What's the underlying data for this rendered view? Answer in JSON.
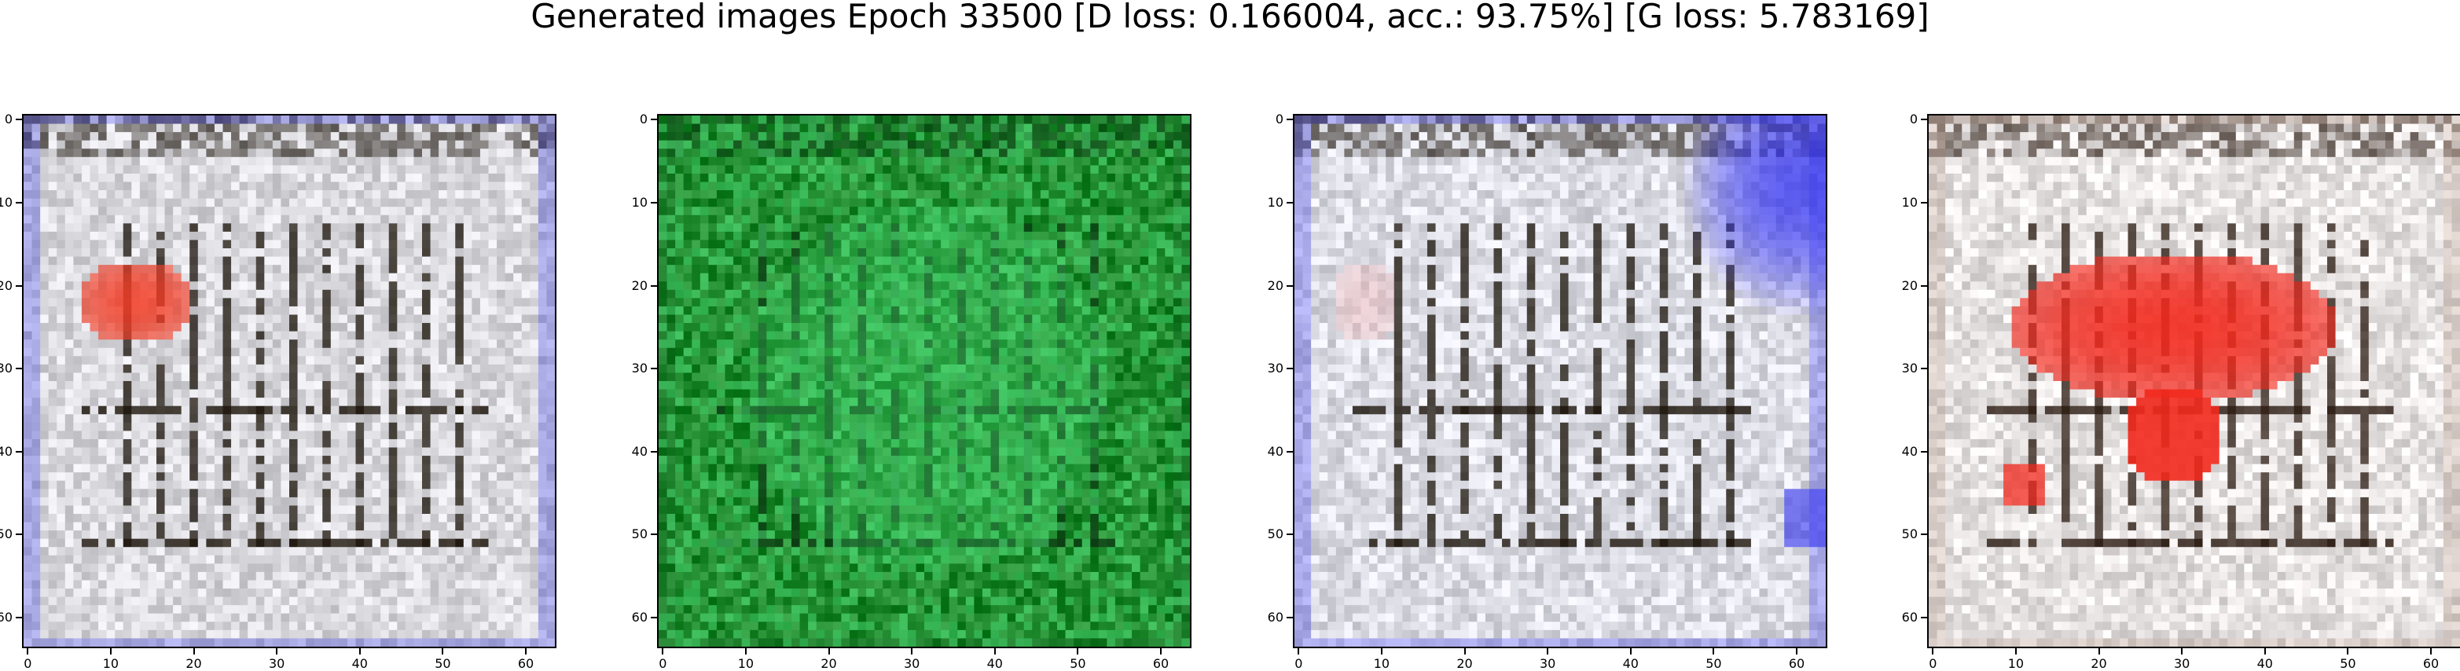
{
  "title": "Generated images Epoch 33500 [D loss: 0.166004, acc.: 93.75%] [G loss: 5.783169]",
  "chart_data": [
    {
      "type": "heatmap",
      "description_of_content": "",
      "x_ticks": [
        "0",
        "10",
        "20",
        "30",
        "40",
        "50",
        "60"
      ],
      "y_ticks": [
        "0",
        "10",
        "20",
        "30",
        "40",
        "50",
        "60"
      ],
      "xlim": [
        -0.5,
        63.5
      ],
      "ylim": [
        63.5,
        -0.5
      ],
      "grid": false,
      "palette": {
        "base": "#d9d9de",
        "line": "#1a1208",
        "blob": "#f23a22",
        "tint": "#3030e8"
      }
    },
    {
      "type": "heatmap",
      "x_ticks": [
        "0",
        "10",
        "20",
        "30",
        "40",
        "50",
        "60"
      ],
      "y_ticks": [
        "0",
        "10",
        "20",
        "30",
        "40",
        "50",
        "60"
      ],
      "xlim": [
        -0.5,
        63.5
      ],
      "ylim": [
        63.5,
        -0.5
      ],
      "grid": false,
      "palette": {
        "base": "#1f8a2e",
        "line": "#0b3a12",
        "blob": "#4fe07a",
        "tint": "#0e5a1a"
      }
    },
    {
      "type": "heatmap",
      "x_ticks": [
        "0",
        "10",
        "20",
        "30",
        "40",
        "50",
        "60"
      ],
      "y_ticks": [
        "0",
        "10",
        "20",
        "30",
        "40",
        "50",
        "60"
      ],
      "xlim": [
        -0.5,
        63.5
      ],
      "ylim": [
        63.5,
        -0.5
      ],
      "grid": false,
      "palette": {
        "base": "#dcdce4",
        "line": "#1a1208",
        "blob": "#e8b4b4",
        "tint": "#2f2ff0"
      }
    },
    {
      "type": "heatmap",
      "x_ticks": [
        "0",
        "10",
        "20",
        "30",
        "40",
        "50",
        "60"
      ],
      "y_ticks": [
        "0",
        "10",
        "20",
        "30",
        "40",
        "50",
        "60"
      ],
      "xlim": [
        -0.5,
        63.5
      ],
      "ylim": [
        63.5,
        -0.5
      ],
      "grid": false,
      "palette": {
        "base": "#e6e2e2",
        "line": "#2a1a10",
        "blob": "#f2281c",
        "tint": "#b89a8a"
      }
    }
  ]
}
